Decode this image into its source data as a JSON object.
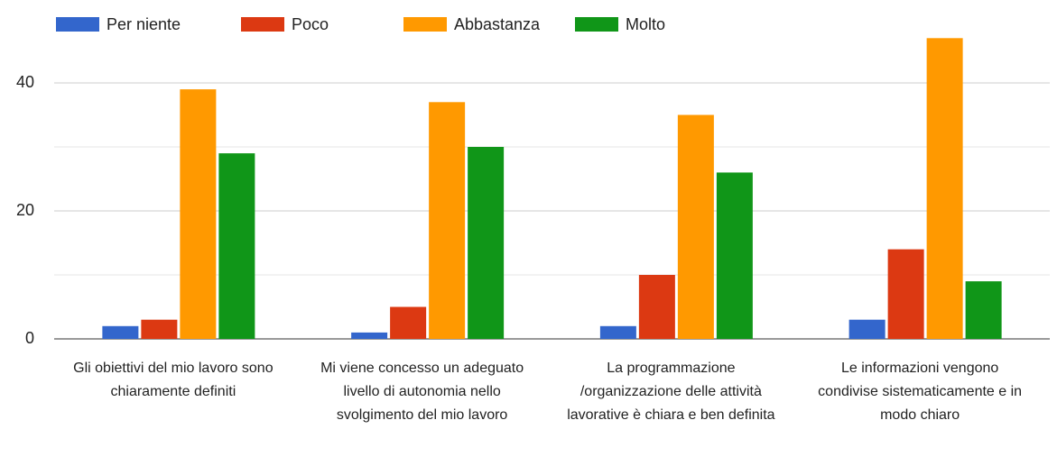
{
  "chart_data": {
    "type": "bar",
    "categories": [
      "Gli obiettivi del mio lavoro sono chiaramente definiti",
      "Mi viene concesso un adeguato livello di autonomia nello svolgimento del mio lavoro",
      "La programmazione /organizzazione delle attività lavorative è chiara e ben definita",
      "Le informazioni vengono condivise sistematicamente e in modo chiaro"
    ],
    "series": [
      {
        "name": "Per niente",
        "color": "#3366cc",
        "values": [
          2,
          1,
          2,
          3
        ]
      },
      {
        "name": "Poco",
        "color": "#dc3912",
        "values": [
          3,
          5,
          10,
          14
        ]
      },
      {
        "name": "Abbastanza",
        "color": "#ff9900",
        "values": [
          39,
          37,
          35,
          47
        ]
      },
      {
        "name": "Molto",
        "color": "#109618",
        "values": [
          29,
          30,
          26,
          9
        ]
      }
    ],
    "ylim": [
      0,
      50
    ],
    "yticks": [
      0,
      20,
      40
    ],
    "minor_yticks": [
      10,
      30
    ],
    "grid": true,
    "legend": "top"
  }
}
